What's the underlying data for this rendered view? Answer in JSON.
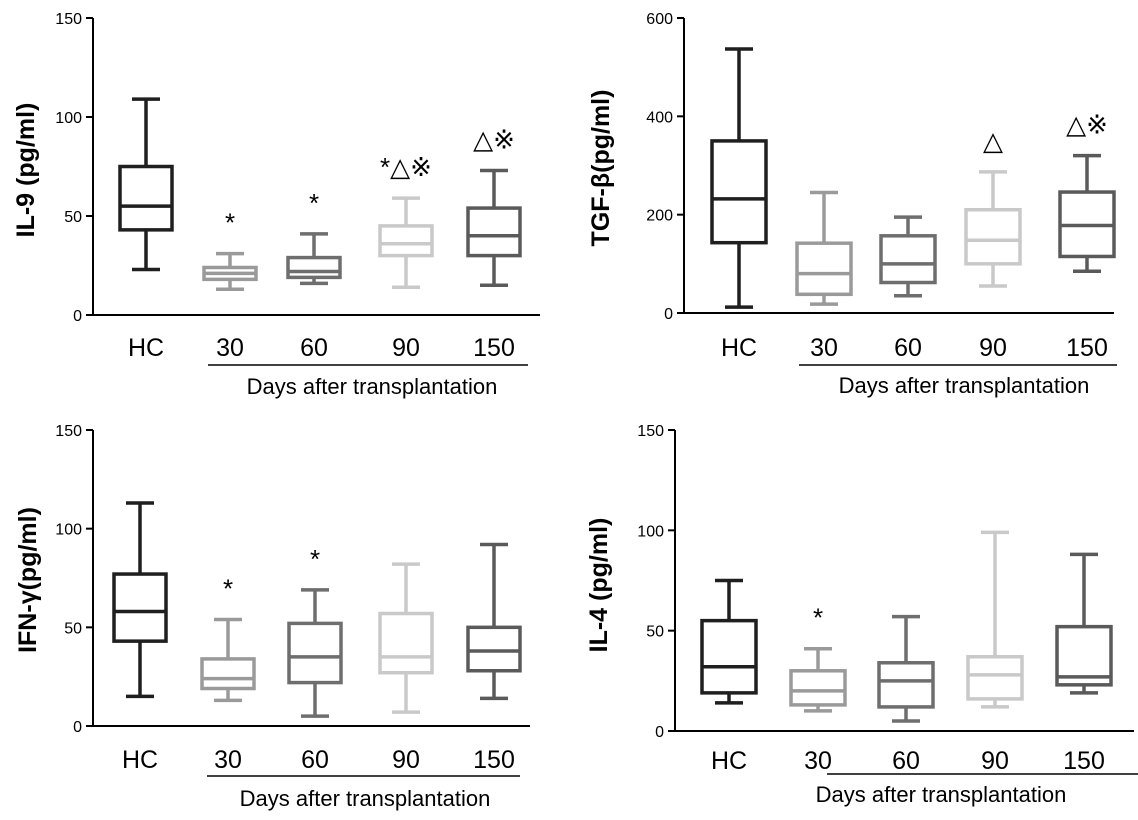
{
  "figure": {
    "charts": [
      {
        "type": "box",
        "ylabel": "IL-9 (pg/ml)",
        "ylim": [
          0,
          150
        ],
        "yticks": [
          0,
          50,
          100,
          150
        ],
        "categories": [
          "HC",
          "30",
          "60",
          "90",
          "150"
        ],
        "group_label": "Days after transplantation",
        "group_underline": [
          "30",
          "150"
        ],
        "colors": [
          "#1f1f1f",
          "#9a9a9a",
          "#6e6e6e",
          "#c9c9c9",
          "#5a5a5a"
        ],
        "boxes": [
          {
            "min": 23,
            "q1": 43,
            "median": 55,
            "q3": 75,
            "max": 109,
            "marker": ""
          },
          {
            "min": 13,
            "q1": 18,
            "median": 21,
            "q3": 24,
            "max": 31,
            "marker": "*"
          },
          {
            "min": 16,
            "q1": 19,
            "median": 22,
            "q3": 29,
            "max": 41,
            "marker": "*"
          },
          {
            "min": 14,
            "q1": 30,
            "median": 36,
            "q3": 45,
            "max": 59,
            "marker": "*△※"
          },
          {
            "min": 15,
            "q1": 30,
            "median": 40,
            "q3": 54,
            "max": 73,
            "marker": "△※"
          }
        ]
      },
      {
        "type": "box",
        "ylabel": "TGF-β(pg/ml)",
        "ylim": [
          0,
          600
        ],
        "yticks": [
          0,
          200,
          400,
          600
        ],
        "categories": [
          "HC",
          "30",
          "60",
          "90",
          "150"
        ],
        "group_label": "Days after transplantation",
        "group_underline": [
          "30",
          "150"
        ],
        "colors": [
          "#1f1f1f",
          "#9a9a9a",
          "#6e6e6e",
          "#c9c9c9",
          "#5a5a5a"
        ],
        "boxes": [
          {
            "min": 12,
            "q1": 143,
            "median": 232,
            "q3": 350,
            "max": 537,
            "marker": ""
          },
          {
            "min": 18,
            "q1": 38,
            "median": 80,
            "q3": 142,
            "max": 245,
            "marker": ""
          },
          {
            "min": 35,
            "q1": 62,
            "median": 100,
            "q3": 157,
            "max": 195,
            "marker": ""
          },
          {
            "min": 55,
            "q1": 100,
            "median": 148,
            "q3": 210,
            "max": 287,
            "marker": "△"
          },
          {
            "min": 85,
            "q1": 115,
            "median": 178,
            "q3": 246,
            "max": 320,
            "marker": "△※"
          }
        ]
      },
      {
        "type": "box",
        "ylabel": "IFN-γ(pg/ml)",
        "ylim": [
          0,
          150
        ],
        "yticks": [
          0,
          50,
          100,
          150
        ],
        "categories": [
          "HC",
          "30",
          "60",
          "90",
          "150"
        ],
        "group_label": "Days after transplantation",
        "group_underline": [
          "30",
          "150"
        ],
        "colors": [
          "#1f1f1f",
          "#9a9a9a",
          "#6e6e6e",
          "#c9c9c9",
          "#5a5a5a"
        ],
        "boxes": [
          {
            "min": 15,
            "q1": 43,
            "median": 58,
            "q3": 77,
            "max": 113,
            "marker": ""
          },
          {
            "min": 13,
            "q1": 19,
            "median": 24,
            "q3": 34,
            "max": 54,
            "marker": "*"
          },
          {
            "min": 5,
            "q1": 22,
            "median": 35,
            "q3": 52,
            "max": 69,
            "marker": "*"
          },
          {
            "min": 7,
            "q1": 27,
            "median": 35,
            "q3": 57,
            "max": 82,
            "marker": ""
          },
          {
            "min": 14,
            "q1": 28,
            "median": 38,
            "q3": 50,
            "max": 92,
            "marker": ""
          }
        ]
      },
      {
        "type": "box",
        "ylabel": "IL-4 (pg/ml)",
        "ylim": [
          0,
          150
        ],
        "yticks": [
          0,
          50,
          100,
          150
        ],
        "categories": [
          "HC",
          "30",
          "60",
          "90",
          "150"
        ],
        "group_label": "Days after transplantation",
        "group_underline": [
          "30",
          "150"
        ],
        "colors": [
          "#1f1f1f",
          "#9a9a9a",
          "#6e6e6e",
          "#c9c9c9",
          "#5a5a5a"
        ],
        "boxes": [
          {
            "min": 14,
            "q1": 19,
            "median": 32,
            "q3": 55,
            "max": 75,
            "marker": ""
          },
          {
            "min": 10,
            "q1": 13,
            "median": 20,
            "q3": 30,
            "max": 41,
            "marker": "*"
          },
          {
            "min": 5,
            "q1": 12,
            "median": 25,
            "q3": 34,
            "max": 57,
            "marker": ""
          },
          {
            "min": 12,
            "q1": 16,
            "median": 28,
            "q3": 37,
            "max": 99,
            "marker": ""
          },
          {
            "min": 19,
            "q1": 23,
            "median": 27,
            "q3": 52,
            "max": 88,
            "marker": ""
          }
        ]
      }
    ]
  }
}
